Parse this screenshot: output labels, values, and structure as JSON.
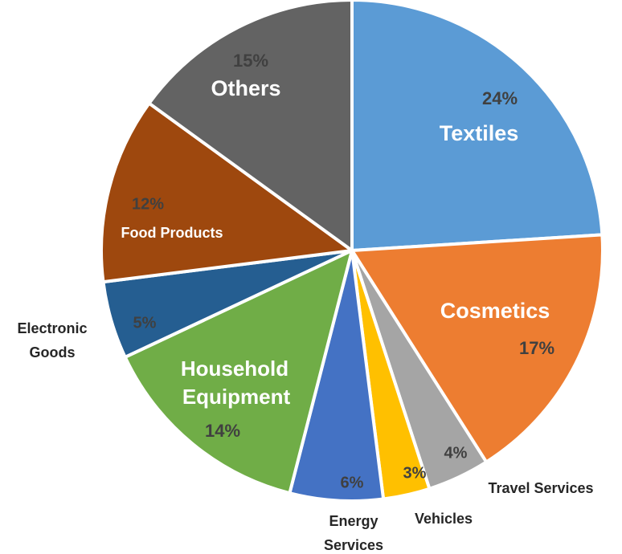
{
  "chart_data": {
    "type": "pie",
    "slices": [
      {
        "label": "Textiles",
        "label_lines": [
          "Textiles"
        ],
        "value": 24,
        "value_label": "24%",
        "color": "#5B9BD5",
        "label_color": "#ffffff"
      },
      {
        "label": "Cosmetics",
        "label_lines": [
          "Cosmetics"
        ],
        "value": 17,
        "value_label": "17%",
        "color": "#ED7D31",
        "label_color": "#ffffff"
      },
      {
        "label": "Travel Services",
        "label_lines": [
          "Travel Services"
        ],
        "value": 4,
        "value_label": "4%",
        "color": "#A5A5A5",
        "label_color": "#262626"
      },
      {
        "label": "Vehicles",
        "label_lines": [
          "Vehicles"
        ],
        "value": 3,
        "value_label": "3%",
        "color": "#FFC000",
        "label_color": "#262626"
      },
      {
        "label": "Energy Services",
        "label_lines": [
          "Energy",
          "Services"
        ],
        "value": 6,
        "value_label": "6%",
        "color": "#4472C4",
        "label_color": "#262626"
      },
      {
        "label": "Household Equipment",
        "label_lines": [
          "Household",
          "Equipment"
        ],
        "value": 14,
        "value_label": "14%",
        "color": "#70AD47",
        "label_color": "#ffffff"
      },
      {
        "label": "Electronic Goods",
        "label_lines": [
          "Electronic",
          "Goods"
        ],
        "value": 5,
        "value_label": "5%",
        "color": "#255E91",
        "label_color": "#262626"
      },
      {
        "label": "Food Products",
        "label_lines": [
          "Food Products"
        ],
        "value": 12,
        "value_label": "12%",
        "color": "#9E480E",
        "label_color": "#ffffff"
      },
      {
        "label": "Others",
        "label_lines": [
          "Others"
        ],
        "value": 15,
        "value_label": "15%",
        "color": "#636363",
        "label_color": "#ffffff"
      }
    ]
  }
}
